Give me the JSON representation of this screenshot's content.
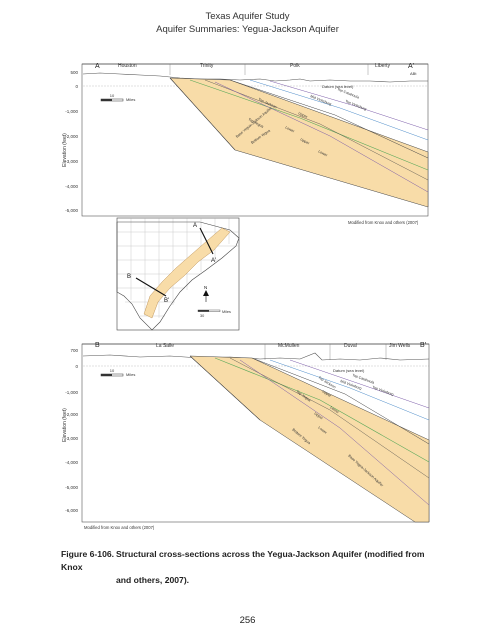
{
  "header": {
    "line1": "Texas Aquifer Study",
    "line2": "Aquifer Summaries: Yegua-Jackson Aquifer"
  },
  "section_a": {
    "start_label": "A",
    "end_label": "A'",
    "counties": [
      "Houston",
      "Trinity",
      "Polk",
      "Liberty"
    ],
    "elevation_ticks": [
      "500",
      "0",
      "-1,000",
      "-2,000",
      "-3,000",
      "-4,000",
      "-5,000"
    ],
    "axis_label": "Elevation (feet)",
    "scale_value": "10",
    "scale_unit": "Miles",
    "datum_label": "Datum (sea level)",
    "corner_label": "ABt",
    "credit": "Modified from Knox and others (2007)",
    "unit_labels": [
      "Top Catahoula",
      "Mid Vicksburg",
      "Top Vicksburg",
      "Top Jackson",
      "Upper",
      "Top Yegua",
      "Lower",
      "Upper",
      "Base Yegua-Jackson Aquifer",
      "Lower",
      "Bottom Yegua"
    ]
  },
  "map": {
    "labels": [
      "A",
      "A'",
      "B",
      "B'"
    ],
    "north": "N",
    "scale_value": "30",
    "scale_unit": "Miles"
  },
  "section_b": {
    "start_label": "B",
    "end_label": "B'",
    "counties": [
      "La Salle",
      "McMullen",
      "Duval",
      "Jim Wells"
    ],
    "elevation_ticks": [
      "700",
      "0",
      "-1,000",
      "-2,000",
      "-3,000",
      "-4,000",
      "-5,000",
      "-6,000"
    ],
    "axis_label": "Elevation (feet)",
    "scale_value": "10",
    "scale_unit": "Miles",
    "datum_label": "Datum (sea level)",
    "credit": "Modified from Knox and others (2007)",
    "unit_labels": [
      "Top Catahoula",
      "Mid Vicksburg",
      "Top Vicksburg",
      "Top Jackson",
      "Upper",
      "Top Yegua",
      "Lower",
      "Upper",
      "Lower",
      "Bottom Yegua",
      "Base Yegua-Jackson Aquifer"
    ]
  },
  "caption": {
    "number": "Figure 6-106.",
    "text_line1": "Structural cross-sections across the Yegua-Jackson Aquifer (modified from Knox",
    "text_line2": "and others, 2007)."
  },
  "page_number": "256",
  "colors": {
    "aquifer_fill": "#f8dca8",
    "green_line": "#5aa85a",
    "purple_line": "#7a5aa8",
    "blue_line": "#4a8ac8",
    "dark_line": "#444444"
  }
}
